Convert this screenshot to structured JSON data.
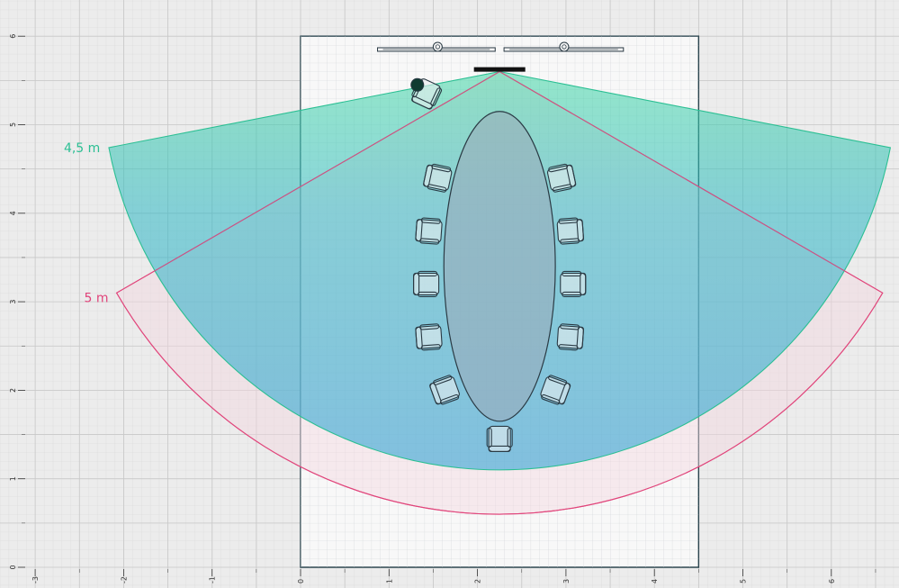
{
  "floor_plan": {
    "units": "m",
    "x_ticks": [
      "-3",
      "-2",
      "-1",
      "0",
      "1",
      "2",
      "3",
      "4",
      "5",
      "6"
    ],
    "y_ticks": [
      "0",
      "1",
      "2",
      "3",
      "4",
      "5",
      "6"
    ],
    "room": {
      "x0": 0,
      "x1": 4.5,
      "y0": 0,
      "y1": 6.0
    },
    "camera": {
      "x": 2.25,
      "y": 5.6
    },
    "seat_count": 11,
    "coverage": [
      {
        "label": "4,5 m",
        "radius_m": 4.5,
        "half_angle_deg": 79,
        "color": "#2bbf93"
      },
      {
        "label": "5 m",
        "radius_m": 5.0,
        "half_angle_deg": 60,
        "color": "#e0457b"
      }
    ],
    "colors": {
      "background": "#ececec",
      "room_fill": "#f8f8f8",
      "room_border": "#1e3a44",
      "camera_bar": "#111111",
      "furniture_stroke": "#2a3a44",
      "table_fill": "#9aaab8"
    }
  }
}
